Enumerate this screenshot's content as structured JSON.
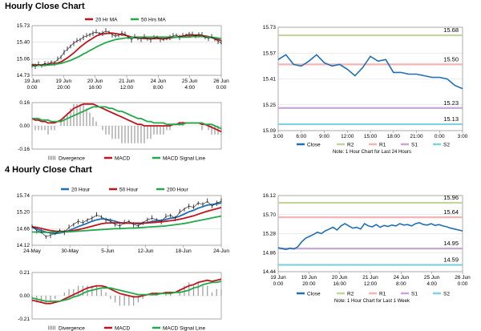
{
  "sections": {
    "hourly_title": "Hourly Close Chart",
    "four_hourly_title": "4 Hourly Close Chart"
  },
  "colors": {
    "close": "#1f6fb5",
    "ma_red": "#c0141c",
    "ma_green": "#22a94a",
    "hist": "#9a9a9a",
    "r2": "#c2d59b",
    "r1": "#f2b4b4",
    "s1": "#c9a6d8",
    "s2": "#7fd3e0",
    "grid": "#d9d9d9"
  },
  "chart_data": [
    {
      "id": "hourly_price",
      "type": "line",
      "title": "",
      "ylim": [
        14.73,
        15.73
      ],
      "yticks": [
        "15.73",
        "15.40",
        "15.06",
        "14.73"
      ],
      "xticks": [
        "19 Jun\n0:00",
        "19 Jun\n20:00",
        "20 Jun\n16:00",
        "21 Jun\n12:00",
        "24 Jun\n8:00",
        "25 Jun\n4:00",
        "26 Jun\n0:00"
      ],
      "legend": [
        "20 Hr MA",
        "50 Hrs MA"
      ],
      "series": [
        {
          "name": "Close",
          "values": [
            14.93,
            14.92,
            14.95,
            14.93,
            14.97,
            14.95,
            15.0,
            14.98,
            15.05,
            15.1,
            15.2,
            15.25,
            15.32,
            15.38,
            15.42,
            15.45,
            15.5,
            15.52,
            15.55,
            15.58,
            15.6,
            15.57,
            15.58,
            15.62,
            15.6,
            15.55,
            15.52,
            15.54,
            15.58,
            15.55,
            15.5,
            15.45,
            15.5,
            15.48,
            15.46,
            15.5,
            15.47,
            15.45,
            15.48,
            15.5,
            15.46,
            15.45,
            15.48,
            15.5,
            15.52,
            15.54,
            15.5,
            15.52,
            15.54,
            15.56,
            15.55,
            15.52,
            15.55,
            15.54,
            15.5,
            15.48,
            15.5,
            15.46,
            15.42,
            15.38
          ]
        },
        {
          "name": "20 Hr MA",
          "values": [
            14.95,
            14.94,
            14.94,
            14.94,
            14.95,
            14.95,
            14.96,
            14.96,
            14.98,
            15.0,
            15.04,
            15.08,
            15.13,
            15.18,
            15.24,
            15.3,
            15.35,
            15.4,
            15.44,
            15.48,
            15.52,
            15.55,
            15.56,
            15.57,
            15.58,
            15.58,
            15.57,
            15.56,
            15.55,
            15.54,
            15.52,
            15.5,
            15.49,
            15.48,
            15.48,
            15.47,
            15.47,
            15.47,
            15.47,
            15.47,
            15.47,
            15.47,
            15.47,
            15.48,
            15.49,
            15.5,
            15.51,
            15.52,
            15.53,
            15.53,
            15.54,
            15.54,
            15.54,
            15.53,
            15.52,
            15.51,
            15.49,
            15.47,
            15.45,
            15.43
          ]
        },
        {
          "name": "50 Hrs MA",
          "values": [
            14.92,
            14.92,
            14.93,
            14.93,
            14.93,
            14.94,
            14.94,
            14.95,
            14.96,
            14.97,
            14.99,
            15.01,
            15.03,
            15.06,
            15.09,
            15.12,
            15.16,
            15.19,
            15.23,
            15.26,
            15.3,
            15.33,
            15.36,
            15.39,
            15.41,
            15.43,
            15.45,
            15.46,
            15.47,
            15.48,
            15.49,
            15.49,
            15.5,
            15.5,
            15.5,
            15.5,
            15.5,
            15.5,
            15.5,
            15.5,
            15.5,
            15.5,
            15.5,
            15.5,
            15.5,
            15.5,
            15.5,
            15.5,
            15.5,
            15.5,
            15.51,
            15.51,
            15.51,
            15.51,
            15.5,
            15.5,
            15.5,
            15.49,
            15.48,
            15.47
          ]
        }
      ]
    },
    {
      "id": "hourly_macd",
      "type": "line",
      "ylim": [
        -0.16,
        0.16
      ],
      "yticks": [
        "0.16",
        "0.00",
        "-0.16"
      ],
      "legend": [
        "Divergence",
        "MACD",
        "MACD Signal Line"
      ],
      "series": [
        {
          "name": "MACD",
          "values": [
            0.05,
            0.04,
            0.04,
            0.03,
            0.03,
            0.02,
            0.02,
            0.02,
            0.03,
            0.04,
            0.06,
            0.08,
            0.1,
            0.12,
            0.13,
            0.14,
            0.15,
            0.15,
            0.15,
            0.15,
            0.14,
            0.13,
            0.12,
            0.11,
            0.1,
            0.09,
            0.08,
            0.07,
            0.06,
            0.05,
            0.04,
            0.03,
            0.02,
            0.01,
            0.01,
            0.0,
            0.0,
            0.0,
            0.0,
            0.0,
            0.0,
            0.0,
            0.0,
            0.0,
            0.01,
            0.01,
            0.02,
            0.02,
            0.02,
            0.02,
            0.02,
            0.02,
            0.02,
            0.01,
            0.01,
            0.0,
            -0.01,
            -0.02,
            -0.03,
            -0.04
          ]
        },
        {
          "name": "MACD Signal Line",
          "values": [
            0.05,
            0.05,
            0.05,
            0.04,
            0.04,
            0.04,
            0.03,
            0.03,
            0.03,
            0.03,
            0.04,
            0.05,
            0.06,
            0.07,
            0.08,
            0.09,
            0.1,
            0.11,
            0.12,
            0.13,
            0.13,
            0.13,
            0.13,
            0.13,
            0.12,
            0.12,
            0.11,
            0.1,
            0.1,
            0.09,
            0.08,
            0.07,
            0.06,
            0.05,
            0.05,
            0.04,
            0.03,
            0.03,
            0.02,
            0.02,
            0.02,
            0.02,
            0.01,
            0.01,
            0.01,
            0.01,
            0.01,
            0.01,
            0.02,
            0.02,
            0.02,
            0.02,
            0.02,
            0.02,
            0.01,
            0.01,
            0.01,
            0.0,
            -0.01,
            -0.02
          ]
        }
      ]
    },
    {
      "id": "hourly_levels",
      "type": "line",
      "ylim": [
        15.09,
        15.73
      ],
      "yticks": [
        "15.73",
        "15.57",
        "15.41",
        "15.25",
        "15.09"
      ],
      "xticks": [
        "3:00",
        "6:00",
        "9:00",
        "12:00",
        "15:00",
        "18:00",
        "21:00",
        "0:00",
        "3:00"
      ],
      "legend": [
        "Close",
        "R2",
        "R1",
        "S1",
        "S2"
      ],
      "levels": [
        {
          "name": "R2",
          "value": 15.68,
          "label": "15.68"
        },
        {
          "name": "R1",
          "value": 15.5,
          "label": "15.50"
        },
        {
          "name": "S1",
          "value": 15.23,
          "label": "15.23"
        },
        {
          "name": "S2",
          "value": 15.13,
          "label": "15.13"
        }
      ],
      "series": [
        {
          "name": "Close",
          "values": [
            15.53,
            15.56,
            15.5,
            15.49,
            15.52,
            15.56,
            15.51,
            15.49,
            15.5,
            15.47,
            15.43,
            15.48,
            15.55,
            15.52,
            15.53,
            15.45,
            15.45,
            15.44,
            15.44,
            15.43,
            15.42,
            15.42,
            15.41,
            15.37,
            15.35
          ]
        }
      ],
      "note": "Note: 1 Hour Chart for Last 24 Hours"
    },
    {
      "id": "four_hourly_price",
      "type": "line",
      "ylim": [
        14.12,
        15.74
      ],
      "yticks": [
        "15.74",
        "15.20",
        "14.66",
        "14.12"
      ],
      "xticks": [
        "24-May",
        "30-May",
        "5-Jun",
        "12-Jun",
        "18-Jun",
        "24-Jun"
      ],
      "legend": [
        "20 Hour",
        "50 Hour",
        "200 Hour"
      ],
      "series": [
        {
          "name": "Close",
          "values": [
            14.75,
            14.6,
            14.55,
            14.4,
            14.45,
            14.5,
            14.6,
            14.55,
            14.7,
            14.8,
            14.9,
            14.85,
            14.95,
            15.0,
            15.1,
            15.05,
            14.95,
            14.9,
            14.8,
            14.75,
            14.85,
            14.9,
            14.8,
            14.75,
            14.85,
            14.95,
            15.0,
            14.95,
            14.9,
            15.05,
            15.1,
            15.0,
            15.2,
            15.3,
            15.4,
            15.35,
            15.5,
            15.45,
            15.55,
            15.4,
            15.5,
            15.55
          ]
        },
        {
          "name": "20 Hour",
          "values": [
            14.7,
            14.65,
            14.6,
            14.55,
            14.52,
            14.5,
            14.52,
            14.55,
            14.6,
            14.66,
            14.73,
            14.78,
            14.84,
            14.9,
            14.95,
            14.98,
            14.97,
            14.94,
            14.9,
            14.86,
            14.84,
            14.84,
            14.83,
            14.82,
            14.83,
            14.86,
            14.9,
            14.92,
            14.93,
            14.96,
            15.0,
            15.02,
            15.07,
            15.14,
            15.21,
            15.26,
            15.33,
            15.38,
            15.43,
            15.45,
            15.47,
            15.5
          ]
        },
        {
          "name": "50 Hour",
          "values": [
            14.72,
            14.7,
            14.67,
            14.63,
            14.6,
            14.58,
            14.57,
            14.57,
            14.58,
            14.6,
            14.63,
            14.66,
            14.7,
            14.74,
            14.78,
            14.82,
            14.84,
            14.85,
            14.85,
            14.85,
            14.84,
            14.84,
            14.84,
            14.84,
            14.84,
            14.85,
            14.86,
            14.87,
            14.88,
            14.9,
            14.92,
            14.94,
            14.97,
            15.0,
            15.04,
            15.08,
            15.13,
            15.18,
            15.23,
            15.27,
            15.31,
            15.35
          ]
        },
        {
          "name": "200 Hour",
          "values": [
            14.55,
            14.55,
            14.54,
            14.54,
            14.54,
            14.54,
            14.55,
            14.55,
            14.56,
            14.57,
            14.58,
            14.59,
            14.6,
            14.61,
            14.62,
            14.63,
            14.64,
            14.65,
            14.66,
            14.66,
            14.67,
            14.68,
            14.68,
            14.69,
            14.7,
            14.71,
            14.72,
            14.73,
            14.74,
            14.75,
            14.77,
            14.79,
            14.81,
            14.83,
            14.86,
            14.89,
            14.92,
            14.95,
            14.98,
            15.01,
            15.04,
            15.07
          ]
        }
      ]
    },
    {
      "id": "four_hourly_macd",
      "type": "line",
      "ylim": [
        -0.21,
        0.21
      ],
      "yticks": [
        "0.21",
        "0.00",
        "-0.21"
      ],
      "legend": [
        "Divergence",
        "MACD",
        "MACD Signal Line"
      ],
      "series": [
        {
          "name": "MACD",
          "values": [
            -0.04,
            -0.05,
            -0.06,
            -0.07,
            -0.07,
            -0.06,
            -0.05,
            -0.03,
            -0.01,
            0.01,
            0.03,
            0.05,
            0.07,
            0.08,
            0.09,
            0.09,
            0.08,
            0.06,
            0.04,
            0.02,
            0.01,
            0.0,
            -0.01,
            -0.01,
            0.0,
            0.01,
            0.02,
            0.02,
            0.02,
            0.03,
            0.03,
            0.03,
            0.05,
            0.07,
            0.09,
            0.1,
            0.12,
            0.13,
            0.14,
            0.13,
            0.14,
            0.15
          ]
        },
        {
          "name": "MACD Signal Line",
          "values": [
            -0.02,
            -0.03,
            -0.04,
            -0.05,
            -0.05,
            -0.05,
            -0.05,
            -0.04,
            -0.03,
            -0.01,
            0.0,
            0.02,
            0.04,
            0.05,
            0.06,
            0.07,
            0.07,
            0.07,
            0.06,
            0.05,
            0.04,
            0.03,
            0.02,
            0.01,
            0.01,
            0.01,
            0.01,
            0.01,
            0.02,
            0.02,
            0.02,
            0.03,
            0.03,
            0.04,
            0.05,
            0.07,
            0.08,
            0.1,
            0.11,
            0.12,
            0.12,
            0.13
          ]
        }
      ]
    },
    {
      "id": "four_hourly_levels",
      "type": "line",
      "ylim": [
        14.44,
        16.12
      ],
      "yticks": [
        "16.12",
        "15.70",
        "15.28",
        "14.86",
        "14.44"
      ],
      "xticks": [
        "19 Jun\n0:00",
        "19 Jun\n20:00",
        "20 Jun\n16:00",
        "21 Jun\n12:00",
        "24 Jun\n8:00",
        "25 Jun\n4:00",
        "26 Jun\n0:00"
      ],
      "legend": [
        "Close",
        "R2",
        "R1",
        "S1",
        "S2"
      ],
      "levels": [
        {
          "name": "R2",
          "value": 15.96,
          "label": "15.96"
        },
        {
          "name": "R1",
          "value": 15.64,
          "label": "15.64"
        },
        {
          "name": "S1",
          "value": 14.95,
          "label": "14.95"
        },
        {
          "name": "S2",
          "value": 14.59,
          "label": "14.59"
        }
      ],
      "series": [
        {
          "name": "Close",
          "values": [
            14.97,
            14.95,
            14.93,
            14.96,
            14.94,
            14.99,
            15.1,
            15.18,
            15.22,
            15.26,
            15.31,
            15.28,
            15.34,
            15.38,
            15.42,
            15.36,
            15.45,
            15.5,
            15.45,
            15.4,
            15.42,
            15.38,
            15.5,
            15.45,
            15.43,
            15.48,
            15.42,
            15.46,
            15.44,
            15.47,
            15.45,
            15.5,
            15.47,
            15.48,
            15.45,
            15.5,
            15.52,
            15.48,
            15.47,
            15.5,
            15.46,
            15.48,
            15.45,
            15.43,
            15.4,
            15.38,
            15.36,
            15.34
          ]
        }
      ],
      "note": "Note: 1 Hour Chart for Last 1 Week"
    }
  ]
}
